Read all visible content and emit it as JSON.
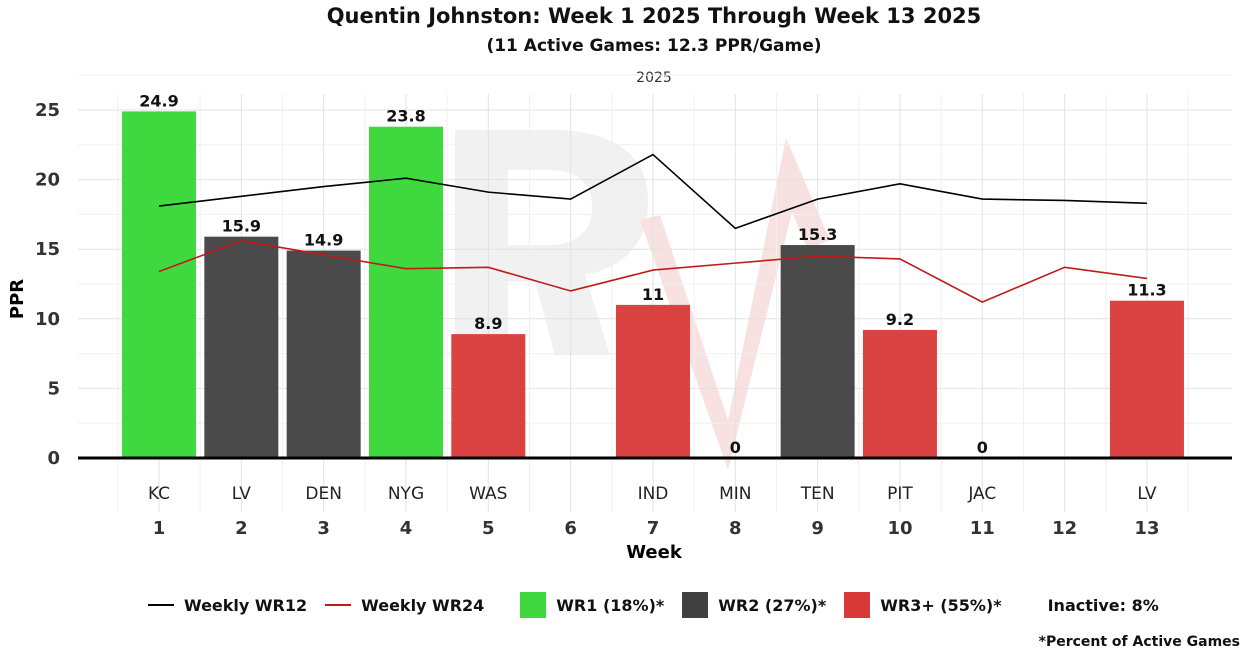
{
  "chart_data": {
    "type": "bar",
    "title": "Quentin Johnston: Week 1 2025 Through Week 13 2025",
    "subtitle": "(11 Active Games: 12.3 PPR/Game)",
    "facet_label": "2025",
    "xlabel": "Week",
    "ylabel": "PPR",
    "ylim": [
      0,
      25
    ],
    "yticks": [
      "0",
      "5",
      "10",
      "15",
      "20",
      "25"
    ],
    "weeks": [
      "1",
      "2",
      "3",
      "4",
      "5",
      "6",
      "7",
      "8",
      "9",
      "10",
      "11",
      "12",
      "13"
    ],
    "opponents": [
      "KC",
      "LV",
      "DEN",
      "NYG",
      "WAS",
      "",
      "IND",
      "MIN",
      "TEN",
      "PIT",
      "JAC",
      "",
      "LV"
    ],
    "values": [
      24.9,
      15.9,
      14.9,
      23.8,
      8.9,
      null,
      11,
      0,
      15.3,
      9.2,
      0,
      null,
      11.3
    ],
    "value_labels": [
      "24.9",
      "15.9",
      "14.9",
      "23.8",
      "8.9",
      "",
      "11",
      "0",
      "15.3",
      "9.2",
      "0",
      "",
      "11.3"
    ],
    "tiers": [
      "WR1",
      "WR2",
      "WR2",
      "WR1",
      "WR3+",
      "",
      "WR3+",
      "WR3+",
      "WR2",
      "WR3+",
      "WR3+",
      "",
      "WR3+"
    ],
    "series": [
      {
        "name": "Weekly WR12",
        "color": "#000000",
        "values": [
          18.1,
          18.8,
          19.5,
          20.1,
          19.1,
          18.6,
          21.8,
          16.5,
          18.6,
          19.7,
          18.6,
          18.5,
          18.3
        ]
      },
      {
        "name": "Weekly WR24",
        "color": "#c01a1a",
        "values": [
          13.4,
          15.6,
          14.6,
          13.6,
          13.7,
          12.0,
          13.5,
          14.0,
          14.5,
          14.3,
          11.2,
          13.7,
          12.9
        ]
      }
    ],
    "tier_colors": {
      "WR1": "#3fd93f",
      "WR2": "#404040",
      "WR3+": "#d93838"
    },
    "legend": {
      "wr12": "Weekly WR12",
      "wr24": "Weekly WR24",
      "wr1": "WR1 (18%)*",
      "wr2": "WR2 (27%)*",
      "wr3": "WR3+ (55%)*",
      "inactive": "Inactive: 8%"
    },
    "footnote": "*Percent of Active Games"
  }
}
